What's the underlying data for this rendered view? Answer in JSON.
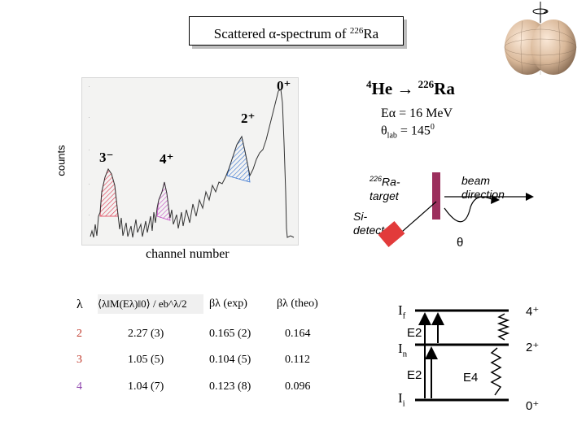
{
  "title": {
    "text": "Scattered α-spectrum of ",
    "isotope_mass": "226",
    "isotope": "Ra"
  },
  "spectrum": {
    "y_label": "counts",
    "x_label": "channel number",
    "peaks": [
      {
        "label": "0⁺",
        "color": "#000000"
      },
      {
        "label": "2⁺",
        "color": "#2f6fd1"
      },
      {
        "label": "3⁻",
        "color": "#e0304a"
      },
      {
        "label": "4⁺",
        "color": "#c247c2"
      }
    ]
  },
  "reaction": {
    "projectile_mass": "4",
    "projectile": "He",
    "arrow": "→",
    "target_mass": "226",
    "target": "Ra",
    "energy": "Eα = 16 MeV",
    "angle_symbol": "θ",
    "angle_sub": "lab",
    "angle_value": "= 145",
    "angle_sup": "0"
  },
  "setup": {
    "target_sup": "226",
    "target_label": "Ra-",
    "target_label2": "target",
    "beam_label": "beam",
    "beam_label2": "direction",
    "detector_label": "Si-",
    "detector_label2": "detector",
    "theta": "θ",
    "target_color": "#9c2f5d",
    "detector_color": "#e23b3b"
  },
  "table": {
    "headers": {
      "lambda": "λ",
      "matrix_element": "⟨λ‖M(Eλ)‖0⟩ / eb^λ/2",
      "beta_exp": "βλ (exp)",
      "beta_theo": "βλ (theo)"
    },
    "rows": [
      {
        "lambda": "2",
        "me": "2.27 (3)",
        "beta_exp": "0.165 (2)",
        "beta_theo": "0.164",
        "color": "#c0392b"
      },
      {
        "lambda": "3",
        "me": "1.05 (5)",
        "beta_exp": "0.104 (5)",
        "beta_theo": "0.112",
        "color": "#c0392b"
      },
      {
        "lambda": "4",
        "me": "1.04 (7)",
        "beta_exp": "0.123 (8)",
        "beta_theo": "0.096",
        "color": "#8e44ad"
      }
    ]
  },
  "levels": {
    "If": "I",
    "If_sub": "f",
    "In": "I",
    "In_sub": "n",
    "Ii": "I",
    "Ii_sub": "i",
    "spin_top": "4⁺",
    "spin_mid": "2⁺",
    "spin_bottom": "0⁺",
    "e2_upper": "E2",
    "e2_lower": "E2",
    "e4": "E4"
  }
}
